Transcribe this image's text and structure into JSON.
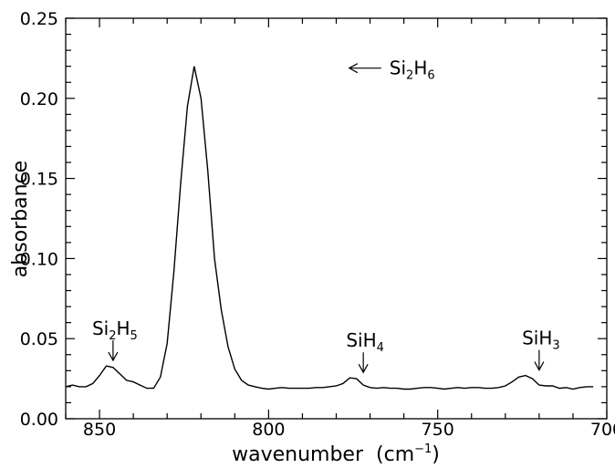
{
  "chart_data": {
    "type": "line",
    "xlabel": "wavenumber",
    "xlabel_unit_prefix": "(cm",
    "xlabel_unit_exp": "−1",
    "xlabel_unit_suffix": ")",
    "ylabel": "absorbance",
    "xlim": [
      860,
      700
    ],
    "ylim": [
      0,
      0.25
    ],
    "x_reversed": true,
    "grid": false,
    "xticks": [
      850,
      800,
      750,
      700
    ],
    "xtick_labels": [
      "850",
      "800",
      "750",
      "700"
    ],
    "yticks": [
      0,
      0.05,
      0.1,
      0.15,
      0.2,
      0.25
    ],
    "ytick_labels": [
      "0.00",
      "0.05",
      "0.10",
      "0.15",
      "0.20",
      "0.25"
    ],
    "series": [
      {
        "x": [
          860,
          858,
          856,
          854,
          852,
          850,
          848,
          846,
          844,
          842,
          840,
          838,
          836,
          834,
          832,
          830,
          828,
          826,
          824,
          822,
          820,
          818,
          816,
          814,
          812,
          810,
          808,
          806,
          804,
          802,
          800,
          798,
          796,
          794,
          792,
          790,
          788,
          786,
          784,
          782,
          780,
          778,
          776,
          774,
          772,
          770,
          768,
          766,
          764,
          762,
          760,
          758,
          756,
          754,
          752,
          750,
          748,
          746,
          744,
          742,
          740,
          738,
          736,
          734,
          732,
          730,
          728,
          726,
          724,
          722,
          720,
          718,
          716,
          714,
          712,
          710,
          708,
          706,
          704
        ],
        "y": [
          0.02,
          0.021,
          0.02,
          0.02,
          0.022,
          0.027,
          0.033,
          0.032,
          0.028,
          0.024,
          0.023,
          0.021,
          0.019,
          0.019,
          0.026,
          0.047,
          0.092,
          0.147,
          0.195,
          0.22,
          0.2,
          0.155,
          0.1,
          0.068,
          0.045,
          0.031,
          0.024,
          0.021,
          0.02,
          0.019,
          0.0185,
          0.019,
          0.0195,
          0.019,
          0.019,
          0.019,
          0.019,
          0.0195,
          0.0195,
          0.02,
          0.0205,
          0.022,
          0.0255,
          0.025,
          0.021,
          0.0195,
          0.019,
          0.0195,
          0.019,
          0.019,
          0.0185,
          0.0185,
          0.019,
          0.0195,
          0.0195,
          0.019,
          0.0185,
          0.019,
          0.0195,
          0.019,
          0.0195,
          0.0195,
          0.019,
          0.019,
          0.0195,
          0.0205,
          0.023,
          0.026,
          0.027,
          0.025,
          0.021,
          0.0205,
          0.0205,
          0.019,
          0.0195,
          0.0185,
          0.0195,
          0.02,
          0.02
        ]
      }
    ],
    "annotations": [
      {
        "label": "Si",
        "sub": "2",
        "label2": "H",
        "sub2": "6",
        "x": 781,
        "y": 0.22,
        "arrow": "left"
      },
      {
        "label": "Si",
        "sub": "2",
        "label2": "H",
        "sub2": "5",
        "x": 846,
        "y": 0.033,
        "arrow": "down"
      },
      {
        "label": "SiH",
        "sub": "4",
        "label2": "",
        "sub2": "",
        "x": 772,
        "y": 0.0255,
        "arrow": "down"
      },
      {
        "label": "SiH",
        "sub": "3",
        "label2": "",
        "sub2": "",
        "x": 720,
        "y": 0.027,
        "arrow": "down"
      }
    ]
  }
}
